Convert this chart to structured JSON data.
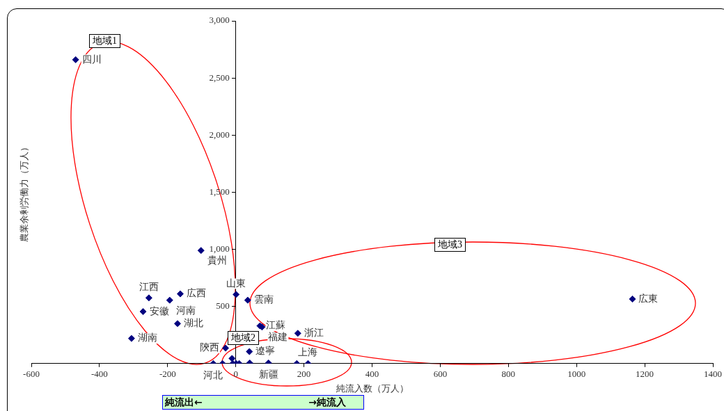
{
  "chart_data": {
    "type": "scatter",
    "xlabel": "純流入数（万人）",
    "ylabel": "農業余剰労働力（万人）",
    "series": [
      {
        "color": "#000080",
        "x": [
          -470,
          -102,
          -255,
          -163,
          -194,
          -272,
          -171,
          -306,
          1,
          35,
          71,
          77,
          182,
          1164,
          -30,
          40,
          96,
          212,
          -66,
          -39,
          -11,
          -9,
          1,
          10,
          41,
          179
        ],
        "values": [
          2660,
          990,
          575,
          610,
          555,
          455,
          350,
          220,
          605,
          555,
          330,
          320,
          265,
          565,
          135,
          105,
          5,
          0,
          0,
          0,
          45,
          0,
          0,
          0,
          5,
          0
        ]
      }
    ],
    "marker": "diamond",
    "grid": false,
    "legend": false,
    "xlim": [
      -600,
      1400
    ],
    "xticks": [
      -600,
      -400,
      -200,
      0,
      200,
      400,
      600,
      800,
      1000,
      1200,
      1400
    ],
    "ylim": [
      0,
      3000
    ],
    "yticks": [
      {
        "value": 0,
        "label": null
      },
      {
        "value": 500,
        "label": "500"
      },
      {
        "value": 1000,
        "label": "1,000"
      },
      {
        "value": 1500,
        "label": "1,500"
      },
      {
        "value": 2000,
        "label": "2,000"
      },
      {
        "value": 2500,
        "label": "2,500"
      },
      {
        "value": 3000,
        "label": "3,000"
      }
    ],
    "annotations": [
      {
        "text": "四川",
        "x": -470,
        "y": 2660
      },
      {
        "text": "貴州",
        "x": -102,
        "y": 990
      },
      {
        "text": "江西",
        "x": -255,
        "y": 575
      },
      {
        "text": "広西",
        "x": -163,
        "y": 610
      },
      {
        "text": "河南",
        "x": -194,
        "y": 555
      },
      {
        "text": "安徽",
        "x": -272,
        "y": 455
      },
      {
        "text": "湖北",
        "x": -171,
        "y": 350
      },
      {
        "text": "湖南",
        "x": -306,
        "y": 220
      },
      {
        "text": "山東",
        "x": 1,
        "y": 605
      },
      {
        "text": "雲南",
        "x": 35,
        "y": 555
      },
      {
        "text": "江蘇",
        "x": 71,
        "y": 330
      },
      {
        "text": "福建",
        "x": 77,
        "y": 320
      },
      {
        "text": "浙江",
        "x": 182,
        "y": 265
      },
      {
        "text": "広東",
        "x": 1164,
        "y": 565
      },
      {
        "text": "陝西",
        "x": -30,
        "y": 135
      },
      {
        "text": "遼寧",
        "x": 40,
        "y": 105
      },
      {
        "text": "新疆",
        "x": 96,
        "y": 5
      },
      {
        "text": "上海",
        "x": 212,
        "y": 0
      },
      {
        "text": "河北",
        "x": -66,
        "y": 0
      },
      "地域1",
      "地域2",
      "地域3",
      "純流出←",
      "→純流入"
    ]
  }
}
